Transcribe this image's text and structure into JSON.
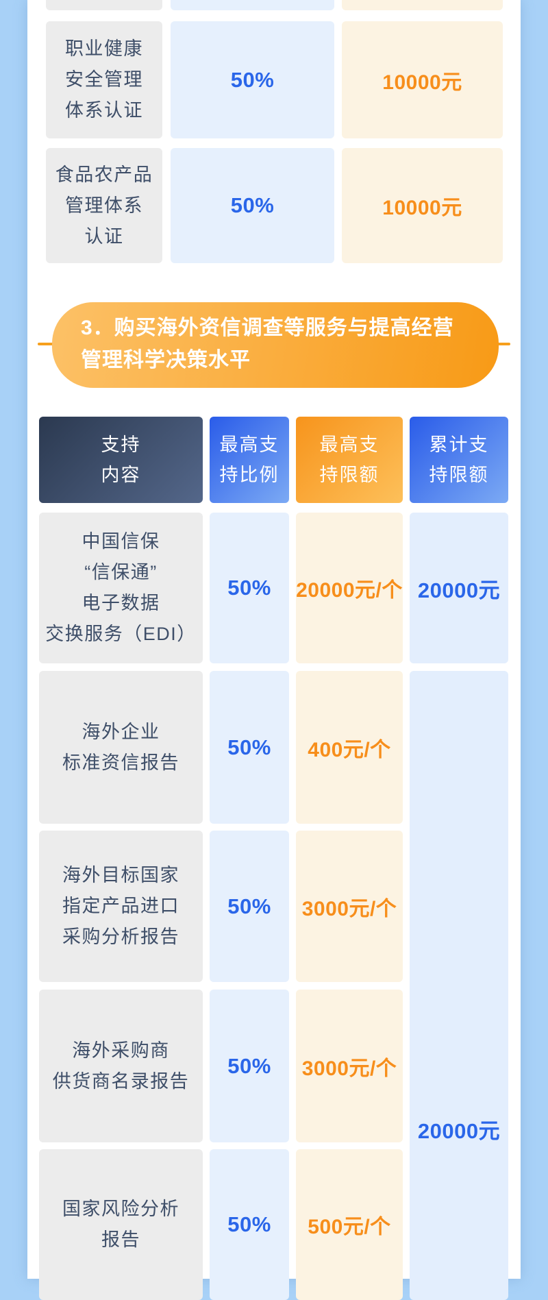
{
  "colors": {
    "page_background": "#a8d1f7",
    "panel_background": "#ffffff",
    "cell_gray": "#ececec",
    "cell_light_blue": "#e6f0fd",
    "cell_cream": "#fcf3e2",
    "accent_blue_text": "#2a66e9",
    "accent_orange_text": "#f78e1b",
    "dark_text": "#3e4e68",
    "banner_orange": "#f89a16",
    "divider_orange": "#f6a01d"
  },
  "table1": {
    "rows": [
      {
        "lines": [
          "职业健康",
          "安全管理",
          "体系认证"
        ],
        "ratio": "50%",
        "amount": "10000元"
      },
      {
        "lines": [
          "食品农产品",
          "管理体系",
          "认证"
        ],
        "ratio": "50%",
        "amount": "10000元"
      }
    ]
  },
  "banner": {
    "line1": "3．购买海外资信调查等服务与提高经营",
    "line2": "管理科学决策水平"
  },
  "table2": {
    "headers": [
      {
        "line1": "支持",
        "line2": "内容"
      },
      {
        "line1": "最高支",
        "line2": "持比例"
      },
      {
        "line1": "最高支",
        "line2": "持限额"
      },
      {
        "line1": "累计支",
        "line2": "持限额"
      }
    ],
    "rows": [
      {
        "lines": [
          "中国信保",
          "“信保通”",
          "电子数据",
          "交换服务（EDI）"
        ],
        "ratio": "50%",
        "limit": "20000元/个",
        "cumulative": "20000元"
      },
      {
        "lines": [
          "海外企业",
          "标准资信报告"
        ],
        "ratio": "50%",
        "limit": "400元/个"
      },
      {
        "lines": [
          "海外目标国家",
          "指定产品进口",
          "采购分析报告"
        ],
        "ratio": "50%",
        "limit": "3000元/个"
      },
      {
        "lines": [
          "海外采购商",
          "供货商名录报告"
        ],
        "ratio": "50%",
        "limit": "3000元/个"
      },
      {
        "lines": [
          "国家风险分析",
          "报告"
        ],
        "ratio": "50%",
        "limit": "500元/个"
      }
    ],
    "merged_cumulative": "20000元"
  }
}
